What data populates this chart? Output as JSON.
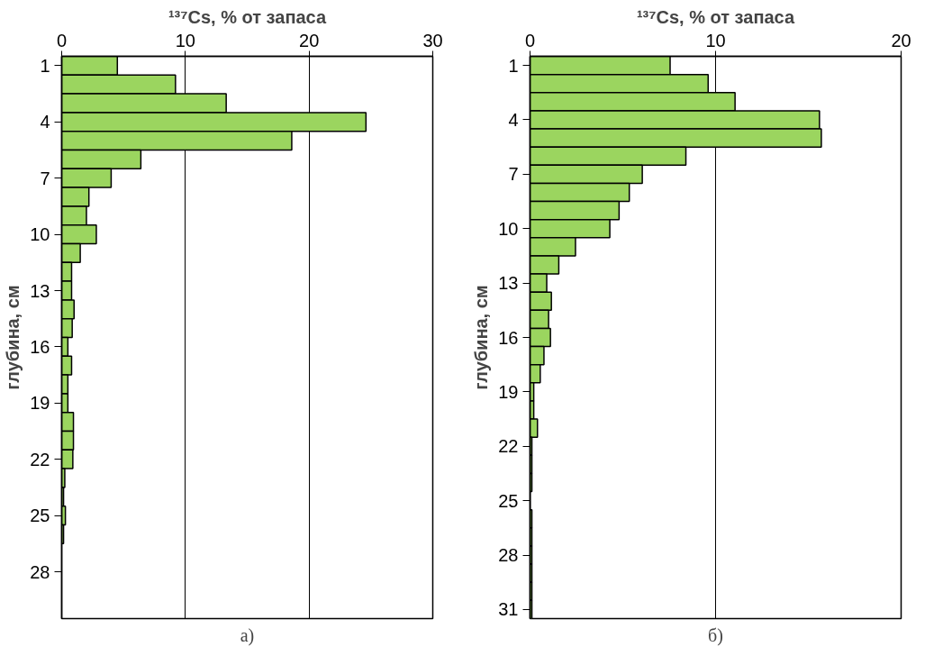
{
  "chart_data": [
    {
      "type": "bar",
      "orientation": "horizontal",
      "title": "¹³⁷Cs, % от запаса",
      "ylabel": "глубина, см",
      "annotations": [
        "а)"
      ],
      "categories": [
        "1",
        null,
        null,
        "4",
        null,
        null,
        "7",
        null,
        null,
        "10",
        null,
        null,
        "13",
        null,
        null,
        "16",
        null,
        null,
        "19",
        null,
        null,
        "22",
        null,
        null,
        "25",
        null,
        null,
        "28",
        null,
        null
      ],
      "values": [
        4.5,
        9.2,
        13.3,
        24.6,
        18.6,
        6.4,
        4.0,
        2.2,
        2.0,
        2.8,
        1.5,
        0.8,
        0.8,
        1.0,
        0.85,
        0.5,
        0.8,
        0.5,
        0.5,
        0.95,
        0.95,
        0.9,
        0.25,
        0.15,
        0.3,
        0.15,
        null,
        null,
        null,
        null
      ],
      "color": "#9bd55f",
      "xlim": [
        0,
        30
      ],
      "xticks": [
        0,
        10,
        20,
        30
      ],
      "grid": "x"
    },
    {
      "type": "bar",
      "orientation": "horizontal",
      "title": "¹³⁷Cs, % от запаса",
      "ylabel": "глубина, см",
      "annotations": [
        "б)"
      ],
      "categories": [
        "1",
        null,
        null,
        "4",
        null,
        null,
        "7",
        null,
        null,
        "10",
        null,
        null,
        "13",
        null,
        null,
        "16",
        null,
        null,
        "19",
        null,
        null,
        "22",
        null,
        null,
        "25",
        null,
        null,
        "28",
        null,
        null,
        "31"
      ],
      "values": [
        7.55,
        9.6,
        11.05,
        15.6,
        15.7,
        8.4,
        6.05,
        5.35,
        4.8,
        4.3,
        2.45,
        1.55,
        0.9,
        1.15,
        1.0,
        1.1,
        0.75,
        0.55,
        0.2,
        0.2,
        0.4,
        0.1,
        0.1,
        0.1,
        0.0,
        0.1,
        0.1,
        0.1,
        0.1,
        0.1,
        0.1
      ],
      "color": "#9bd55f",
      "xlim": [
        0,
        20
      ],
      "xticks": [
        0,
        10,
        20
      ],
      "grid": "x"
    }
  ]
}
